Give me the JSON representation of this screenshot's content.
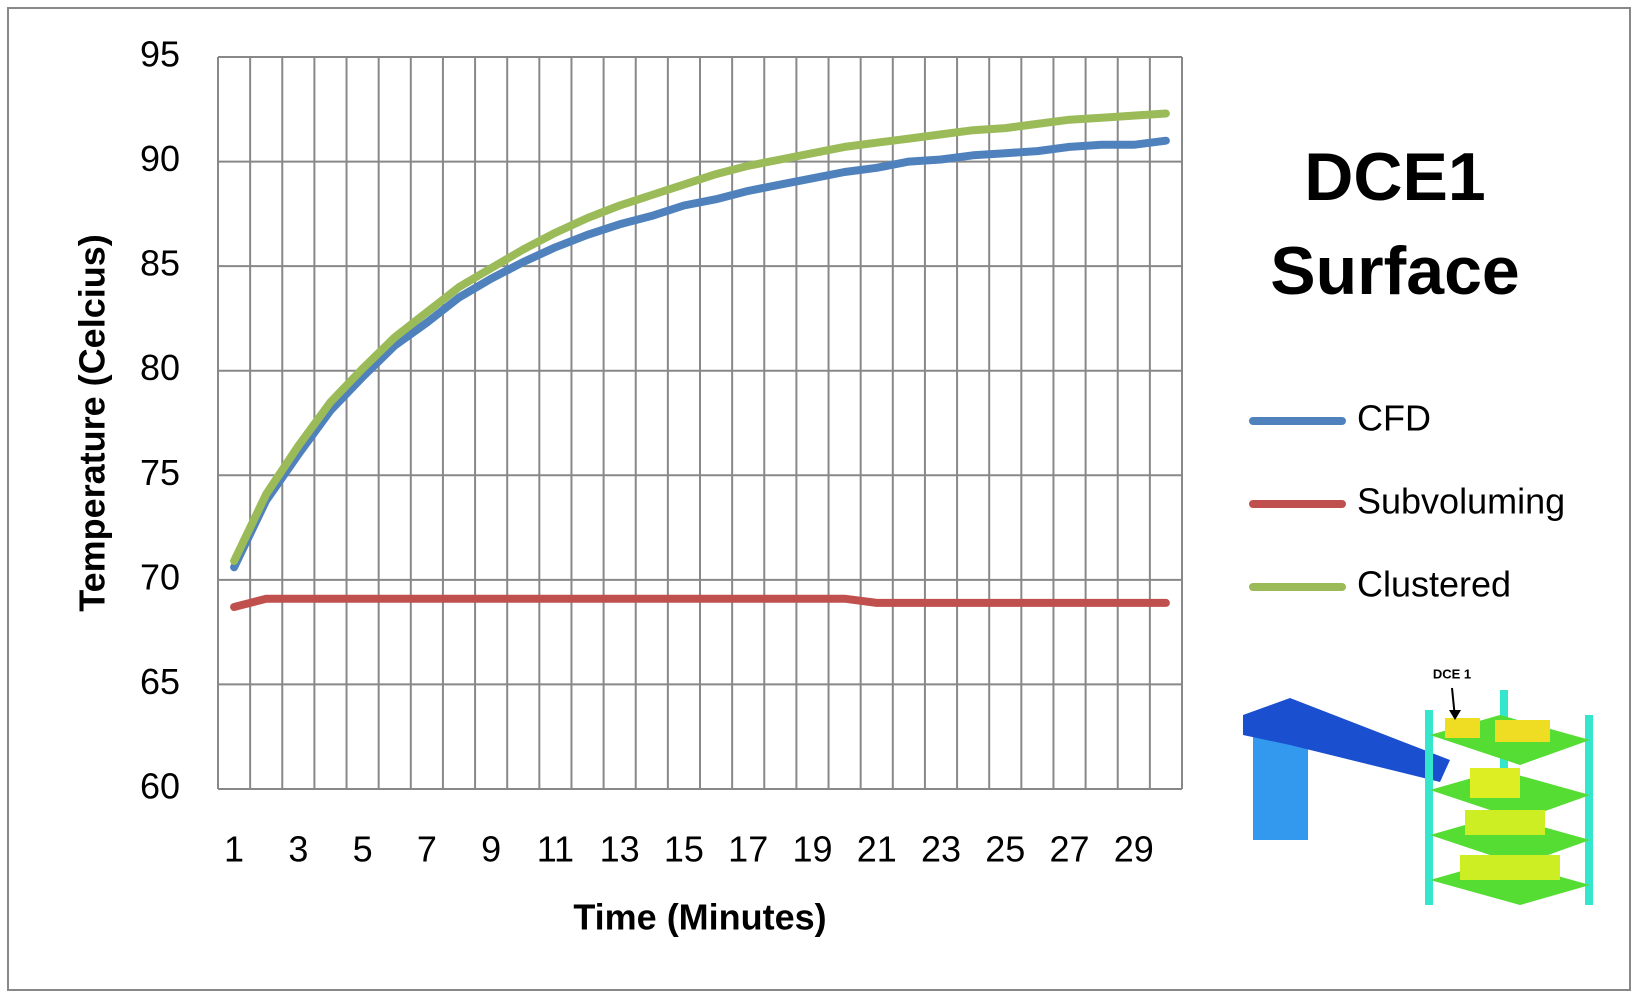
{
  "chart_data": {
    "type": "line",
    "title": "DCE1 Surface",
    "x_label": "Time (Minutes)",
    "y_label": "Temperature (Celcius)",
    "categories": [
      "1",
      null,
      "3",
      null,
      "5",
      null,
      "7",
      null,
      "9",
      null,
      "11",
      null,
      "13",
      null,
      "15",
      null,
      "17",
      null,
      "19",
      null,
      "21",
      null,
      "23",
      null,
      "25",
      null,
      "27",
      null,
      "29",
      null
    ],
    "series": [
      {
        "name": "CFD",
        "color": "#4f81bd",
        "values": [
          70.6,
          73.8,
          76.0,
          78.1,
          79.7,
          81.2,
          82.3,
          83.5,
          84.4,
          85.2,
          85.9,
          86.5,
          87.0,
          87.4,
          87.9,
          88.2,
          88.6,
          88.9,
          89.2,
          89.5,
          89.7,
          90.0,
          90.1,
          90.3,
          90.4,
          90.5,
          90.7,
          90.8,
          90.8,
          91.0
        ]
      },
      {
        "name": "Subvoluming",
        "color": "#c0504d",
        "values": [
          68.7,
          69.1,
          69.1,
          69.1,
          69.1,
          69.1,
          69.1,
          69.1,
          69.1,
          69.1,
          69.1,
          69.1,
          69.1,
          69.1,
          69.1,
          69.1,
          69.1,
          69.1,
          69.1,
          69.1,
          68.9,
          68.9,
          68.9,
          68.9,
          68.9,
          68.9,
          68.9,
          68.9,
          68.9,
          68.9
        ]
      },
      {
        "name": "Clustered",
        "color": "#9bbb59",
        "values": [
          70.9,
          74.1,
          76.4,
          78.5,
          80.1,
          81.6,
          82.8,
          84.0,
          84.9,
          85.8,
          86.6,
          87.3,
          87.9,
          88.4,
          88.9,
          89.4,
          89.8,
          90.1,
          90.4,
          90.7,
          90.9,
          91.1,
          91.3,
          91.5,
          91.6,
          91.8,
          92.0,
          92.1,
          92.2,
          92.3
        ]
      }
    ],
    "ylim": [
      60,
      95
    ],
    "yticks": [
      60,
      65,
      70,
      75,
      80,
      85,
      90,
      95
    ],
    "grid": true,
    "legend": "right",
    "inset_label": "DCE 1"
  }
}
